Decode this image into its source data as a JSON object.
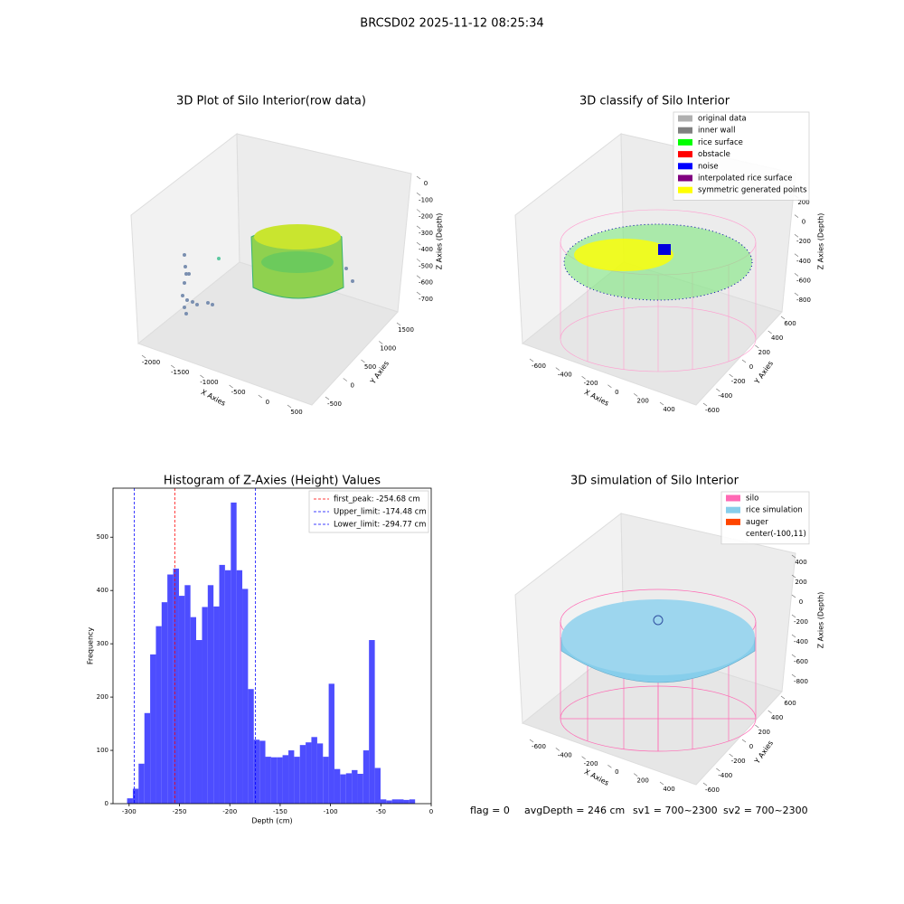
{
  "title": "BRCSD02 2025-11-12 08:25:34",
  "footer": [
    "flag = 0",
    "avgDepth = 246 cm",
    "sv1 = 700~2300",
    "sv2 = 700~2300"
  ],
  "chart_data": [
    {
      "type": "scatter3d",
      "title": "3D Plot of Silo Interior(row data)",
      "xlabel": "X Axies",
      "ylabel": "Y Axies",
      "zlabel": "Z Axies (Depth)",
      "xticks": [
        -2000,
        -1500,
        -1000,
        -500,
        0,
        500
      ],
      "yticks": [
        -500,
        0,
        500,
        1000,
        1500
      ],
      "zticks": [
        0,
        -100,
        -200,
        -300,
        -400,
        -500,
        -600,
        -700
      ]
    },
    {
      "type": "scatter3d",
      "title": "3D classify of Silo Interior",
      "xlabel": "X Axies",
      "ylabel": "Y Axies",
      "zlabel": "Z Axies (Depth)",
      "xticks": [
        -600,
        -400,
        -200,
        0,
        200,
        400
      ],
      "yticks": [
        -600,
        -400,
        -200,
        0,
        200,
        400,
        600
      ],
      "zticks": [
        200,
        0,
        -200,
        -400,
        -600,
        -800
      ],
      "series": [
        {
          "name": "original data",
          "color": "#b0b0b0"
        },
        {
          "name": "inner wall",
          "color": "#808080"
        },
        {
          "name": "rice surface",
          "color": "#00ff00"
        },
        {
          "name": "obstacle",
          "color": "#ff0000"
        },
        {
          "name": "noise",
          "color": "#0000ff"
        },
        {
          "name": "interpolated rice surface",
          "color": "#800080"
        },
        {
          "name": "symmetric generated points",
          "color": "#ffff00"
        }
      ]
    },
    {
      "type": "histogram",
      "title": "Histogram of Z-Axies (Height) Values",
      "xlabel": "Depth (cm)",
      "ylabel": "Frequency",
      "color": "#4d4dff",
      "bins": [
        -302.0,
        -296.3,
        -290.6,
        -284.8,
        -279.1,
        -273.4,
        -267.7,
        -262.0,
        -256.2,
        -250.5,
        -244.8,
        -239.1,
        -233.4,
        -227.6,
        -221.9,
        -216.2,
        -210.5,
        -204.8,
        -199.0,
        -193.3,
        -187.6,
        -181.9,
        -176.2,
        -170.4,
        -164.7,
        -159.0,
        -153.3,
        -147.6,
        -141.8,
        -136.1,
        -130.4,
        -124.7,
        -119.0,
        -113.2,
        -107.5,
        -101.8,
        -96.1,
        -90.4,
        -84.6,
        -78.9,
        -73.2,
        -67.5,
        -61.8,
        -56.0,
        -50.3,
        -44.6,
        -38.9,
        -33.2,
        -27.4,
        -21.7,
        -16.0
      ],
      "values": [
        10,
        28,
        75,
        170,
        280,
        333,
        378,
        430,
        441,
        390,
        410,
        350,
        307,
        369,
        410,
        370,
        448,
        438,
        565,
        438,
        403,
        215,
        120,
        118,
        88,
        87,
        87,
        91,
        100,
        88,
        110,
        115,
        125,
        113,
        88,
        225,
        65,
        55,
        57,
        63,
        56,
        100,
        307,
        67,
        8,
        6,
        8,
        8,
        7,
        8
      ],
      "xlim": [
        -316,
        0
      ],
      "ylim": [
        0,
        592
      ],
      "xticks": [
        -300,
        -250,
        -200,
        -150,
        -100,
        -50,
        0
      ],
      "yticks": [
        0,
        100,
        200,
        300,
        400,
        500
      ],
      "legend": "upper right",
      "lines": [
        {
          "label": "first_peak: -254.68 cm",
          "value": -254.68,
          "color": "#ff0000"
        },
        {
          "label": "Upper_limit: -174.48 cm",
          "value": -174.48,
          "color": "#0000ff"
        },
        {
          "label": "Lower_limit: -294.77 cm",
          "value": -294.77,
          "color": "#0000ff"
        }
      ]
    },
    {
      "type": "scatter3d",
      "title": "3D simulation of Silo Interior",
      "xlabel": "X Axies",
      "ylabel": "Y Axies",
      "zlabel": "Z Axies (Depth)",
      "xticks": [
        -600,
        -400,
        -200,
        0,
        200,
        400
      ],
      "yticks": [
        -600,
        -400,
        -200,
        0,
        200,
        400,
        600
      ],
      "zticks": [
        400,
        200,
        0,
        -200,
        -400,
        -600,
        -800
      ],
      "series": [
        {
          "name": "silo",
          "color": "#ff69b4"
        },
        {
          "name": "rice simulation",
          "color": "#87ceeb"
        },
        {
          "name": "auger",
          "color": "#ff4500"
        },
        {
          "name": "center(-100,11)",
          "color": "#ffffff"
        }
      ]
    }
  ]
}
